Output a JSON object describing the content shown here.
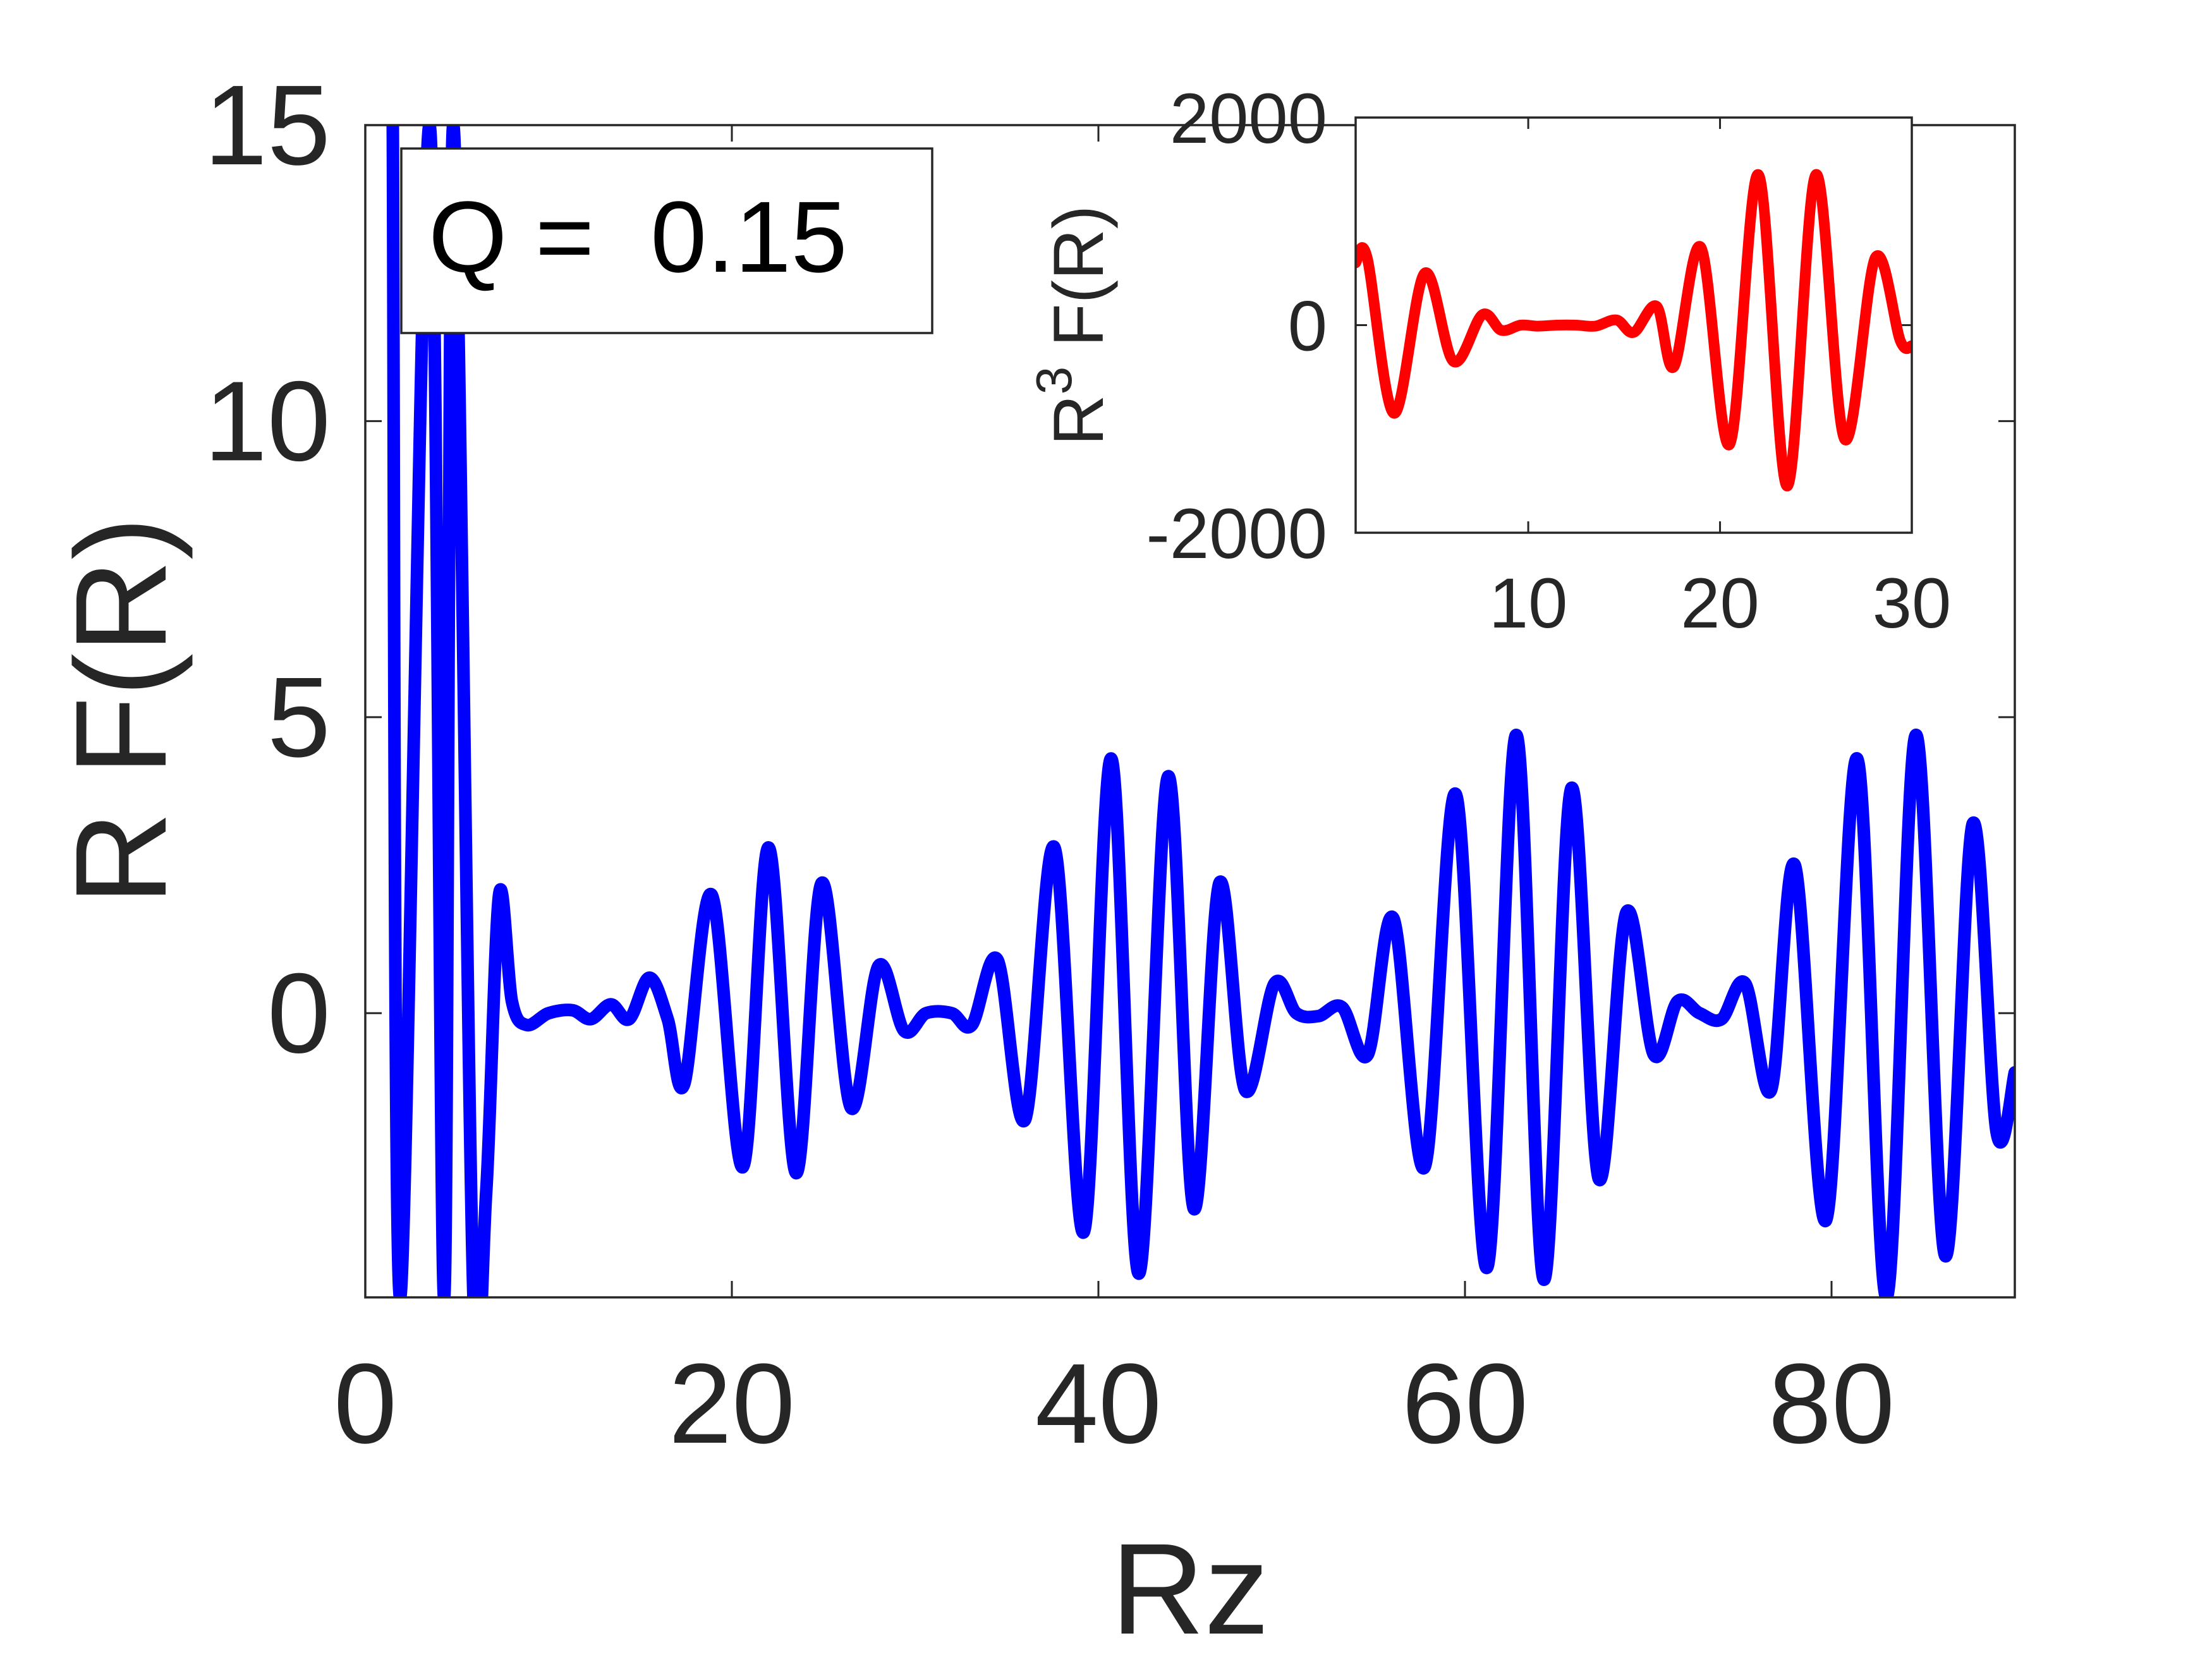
{
  "chart_data": [
    {
      "type": "line",
      "xlabel": "Rz",
      "ylabel": "R F(R)",
      "xlim": [
        0,
        90
      ],
      "ylim": [
        -4.8,
        15
      ],
      "xticks": [
        0,
        20,
        40,
        60,
        80
      ],
      "yticks": [
        0,
        5,
        10,
        15
      ],
      "xtick_labels": [
        "0",
        "20",
        "40",
        "60",
        "80"
      ],
      "ytick_labels": [
        "0",
        "5",
        "10",
        "15"
      ],
      "grid": false,
      "series": [
        {
          "color": "#0000ff",
          "points": [
            [
              1.5,
              15
            ],
            [
              1.9,
              -4.8
            ],
            [
              3.5,
              15
            ],
            [
              4.3,
              -4.8
            ],
            [
              4.8,
              15
            ],
            [
              5.9,
              -4.8
            ],
            [
              6.6,
              -3.0
            ],
            [
              7.3,
              2.0
            ],
            [
              8.0,
              0.2
            ],
            [
              8.8,
              -0.2
            ],
            [
              10.0,
              0.0
            ],
            [
              11.3,
              0.05
            ],
            [
              12.3,
              -0.1
            ],
            [
              13.4,
              0.15
            ],
            [
              14.4,
              -0.1
            ],
            [
              15.5,
              0.6
            ],
            [
              16.5,
              -0.1
            ],
            [
              17.4,
              -1.2
            ],
            [
              18.9,
              2.0
            ],
            [
              20.6,
              -2.6
            ],
            [
              22.0,
              2.8
            ],
            [
              23.5,
              -2.7
            ],
            [
              24.9,
              2.2
            ],
            [
              26.5,
              -1.6
            ],
            [
              28.0,
              0.8
            ],
            [
              29.4,
              -0.3
            ],
            [
              30.6,
              0.0
            ],
            [
              32.0,
              0.0
            ],
            [
              33.1,
              -0.2
            ],
            [
              34.5,
              0.9
            ],
            [
              36.0,
              -1.8
            ],
            [
              37.6,
              2.8
            ],
            [
              39.2,
              -3.7
            ],
            [
              40.7,
              4.3
            ],
            [
              42.2,
              -4.4
            ],
            [
              43.8,
              4.0
            ],
            [
              45.2,
              -3.3
            ],
            [
              46.6,
              2.2
            ],
            [
              48.0,
              -1.3
            ],
            [
              49.6,
              0.5
            ],
            [
              50.8,
              0.0
            ],
            [
              52.0,
              -0.05
            ],
            [
              53.3,
              0.1
            ],
            [
              54.7,
              -0.7
            ],
            [
              56.1,
              1.6
            ],
            [
              57.8,
              -2.6
            ],
            [
              59.5,
              3.7
            ],
            [
              61.2,
              -4.3
            ],
            [
              62.8,
              4.7
            ],
            [
              64.3,
              -4.5
            ],
            [
              65.8,
              3.8
            ],
            [
              67.3,
              -2.8
            ],
            [
              68.8,
              1.7
            ],
            [
              70.3,
              -0.7
            ],
            [
              71.6,
              0.2
            ],
            [
              72.8,
              0.0
            ],
            [
              74.0,
              -0.1
            ],
            [
              75.3,
              0.5
            ],
            [
              76.7,
              -1.3
            ],
            [
              78.0,
              2.5
            ],
            [
              79.7,
              -3.5
            ],
            [
              81.4,
              4.3
            ],
            [
              83.0,
              -4.8
            ],
            [
              84.6,
              4.7
            ],
            [
              86.2,
              -4.1
            ],
            [
              87.7,
              3.2
            ],
            [
              89.0,
              -2.0
            ],
            [
              90.0,
              -1.0
            ]
          ]
        }
      ],
      "annotation": "Q =  0.15"
    },
    {
      "type": "line",
      "xlabel": "",
      "ylabel_base": "R",
      "ylabel_superscript": "3",
      "ylabel_rest": " F(R)",
      "xlim": [
        1,
        30
      ],
      "ylim": [
        -2000,
        2000
      ],
      "xticks": [
        10,
        20,
        30
      ],
      "yticks": [
        -2000,
        0,
        2000
      ],
      "xtick_labels": [
        "10",
        "20",
        "30"
      ],
      "ytick_labels": [
        "-2000",
        "0",
        "2000"
      ],
      "grid": false,
      "series": [
        {
          "color": "#ff0000",
          "points": [
            [
              1.0,
              600
            ],
            [
              1.6,
              650
            ],
            [
              3.0,
              -850
            ],
            [
              4.6,
              500
            ],
            [
              6.1,
              -350
            ],
            [
              7.6,
              100
            ],
            [
              8.6,
              -50
            ],
            [
              9.6,
              0
            ],
            [
              10.5,
              -10
            ],
            [
              11.5,
              0
            ],
            [
              12.5,
              0
            ],
            [
              13.5,
              -10
            ],
            [
              14.6,
              50
            ],
            [
              15.5,
              -70
            ],
            [
              16.7,
              180
            ],
            [
              17.6,
              -400
            ],
            [
              19.0,
              750
            ],
            [
              20.5,
              -1150
            ],
            [
              22.0,
              1450
            ],
            [
              23.5,
              -1550
            ],
            [
              25.0,
              1450
            ],
            [
              26.5,
              -1100
            ],
            [
              28.1,
              650
            ],
            [
              29.4,
              -150
            ],
            [
              30.0,
              -200
            ]
          ]
        }
      ]
    }
  ]
}
